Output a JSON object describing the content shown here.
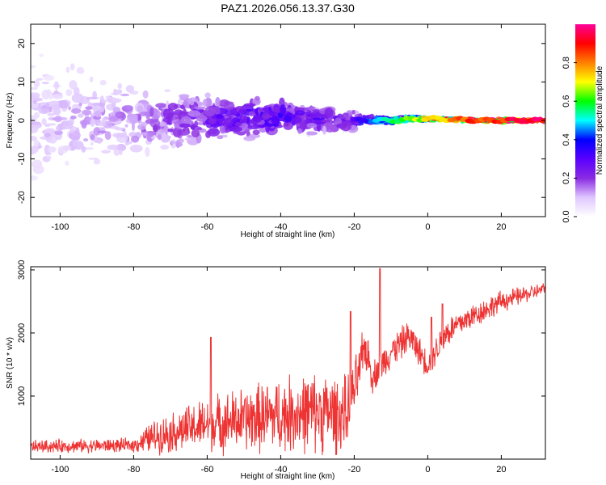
{
  "title": "PAZ1.2026.056.13.37.G30",
  "chart_data": [
    {
      "type": "heatmap",
      "xlabel": "Height of straight line (km)",
      "ylabel": "Frequency (Hz)",
      "xlim": [
        -108,
        32
      ],
      "ylim": [
        -25,
        25
      ],
      "xticks": [
        -100,
        -80,
        -60,
        -40,
        -20,
        0,
        20
      ],
      "xtick_labels": [
        "-100",
        "-80",
        "-60",
        "-40",
        "-20",
        "0",
        "20"
      ],
      "yticks": [
        -20,
        -10,
        0,
        10,
        20
      ],
      "ytick_labels": [
        "-20",
        "-10",
        "0",
        "10",
        "20"
      ],
      "description_trend": [
        {
          "x": -105,
          "center_hz": 0,
          "spread_hz": 22,
          "amplitude": 0.1
        },
        {
          "x": -80,
          "center_hz": 0,
          "spread_hz": 12,
          "amplitude": 0.15
        },
        {
          "x": -60,
          "center_hz": 0.5,
          "spread_hz": 8,
          "amplitude": 0.25
        },
        {
          "x": -40,
          "center_hz": 1,
          "spread_hz": 6,
          "amplitude": 0.3
        },
        {
          "x": -22,
          "center_hz": 0,
          "spread_hz": 3,
          "amplitude": 0.25
        },
        {
          "x": -10,
          "center_hz": 0,
          "spread_hz": 1,
          "amplitude": 0.6
        },
        {
          "x": 0,
          "center_hz": 0.5,
          "spread_hz": 0.8,
          "amplitude": 0.75
        },
        {
          "x": 15,
          "center_hz": 0,
          "spread_hz": 0.5,
          "amplitude": 0.95
        },
        {
          "x": 32,
          "center_hz": 0,
          "spread_hz": 0.5,
          "amplitude": 1.0
        }
      ],
      "colorbar": {
        "label": "Normalized spectral amplitude",
        "range": [
          0,
          1
        ],
        "ticks": [
          0.0,
          0.2,
          0.4,
          0.6,
          0.8
        ],
        "tick_labels": [
          "0.0",
          "0.2",
          "0.4",
          "0.6",
          "0.8"
        ],
        "colors": [
          "#ffffff",
          "#dfc6ff",
          "#8a2be2",
          "#5a00ff",
          "#0000ff",
          "#00ffff",
          "#00ff00",
          "#ffff00",
          "#ff8000",
          "#ff0000",
          "#ff0099"
        ]
      }
    },
    {
      "type": "line",
      "xlabel": "Height of straight line (km)",
      "ylabel": "SNR (10 * v/v)",
      "xlim": [
        -108,
        32
      ],
      "ylim": [
        0,
        3050
      ],
      "xticks": [
        -100,
        -80,
        -60,
        -40,
        -20,
        0,
        20
      ],
      "xtick_labels": [
        "-100",
        "-80",
        "-60",
        "-40",
        "-20",
        "0",
        "20"
      ],
      "yticks": [
        1000,
        2000,
        3000
      ],
      "ytick_labels": [
        "1000",
        "2000",
        "3000"
      ],
      "line_color": "#ee3333",
      "trend": [
        {
          "x": -108,
          "base": 200,
          "noise": 120
        },
        {
          "x": -80,
          "base": 220,
          "noise": 130
        },
        {
          "x": -75,
          "base": 350,
          "noise": 300
        },
        {
          "x": -60,
          "base": 550,
          "noise": 500
        },
        {
          "x": -40,
          "base": 700,
          "noise": 700
        },
        {
          "x": -30,
          "base": 750,
          "noise": 750
        },
        {
          "x": -22,
          "base": 700,
          "noise": 700
        },
        {
          "x": -19,
          "base": 1300,
          "noise": 500
        },
        {
          "x": -17,
          "base": 1800,
          "noise": 450
        },
        {
          "x": -15,
          "base": 1300,
          "noise": 300
        },
        {
          "x": -10,
          "base": 1700,
          "noise": 300
        },
        {
          "x": -5,
          "base": 1950,
          "noise": 300
        },
        {
          "x": 0,
          "base": 1500,
          "noise": 250
        },
        {
          "x": 5,
          "base": 2000,
          "noise": 300
        },
        {
          "x": 10,
          "base": 2200,
          "noise": 250
        },
        {
          "x": 20,
          "base": 2500,
          "noise": 200
        },
        {
          "x": 32,
          "base": 2700,
          "noise": 120
        }
      ],
      "spikes": [
        {
          "x": -13,
          "y": 3020
        },
        {
          "x": -59,
          "y": 1930
        },
        {
          "x": 4,
          "y": 2460
        },
        {
          "x": -21,
          "y": 2340
        },
        {
          "x": 1,
          "y": 2250
        }
      ]
    }
  ]
}
